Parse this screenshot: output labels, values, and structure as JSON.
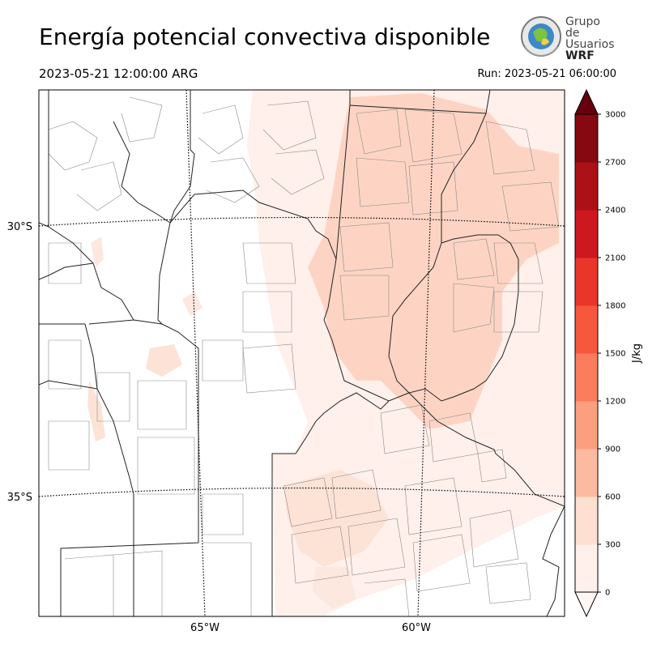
{
  "header": {
    "title": "Energía potencial convectiva disponible",
    "valid_time": "2023-05-21 12:00:00 ARG",
    "run_time": "Run: 2023-05-21 06:00:00"
  },
  "logo": {
    "line1": "Grupo de",
    "line2": "Usuarios",
    "line3": "WRF"
  },
  "map": {
    "lat_labels": [
      "30°S",
      "35°S"
    ],
    "lon_labels": [
      "65°W",
      "60°W"
    ]
  },
  "colorbar": {
    "label": "J/kg",
    "ticks": [
      "0",
      "300",
      "600",
      "900",
      "1200",
      "1500",
      "1800",
      "2100",
      "2400",
      "2700",
      "3000"
    ],
    "colors": [
      "#fff0eb",
      "#fee0d2",
      "#fcbba1",
      "#fc9f81",
      "#fb7d5d",
      "#f6583e",
      "#ea362a",
      "#cc181e",
      "#ab1117",
      "#860811"
    ],
    "extend_color": "#67000d"
  }
}
